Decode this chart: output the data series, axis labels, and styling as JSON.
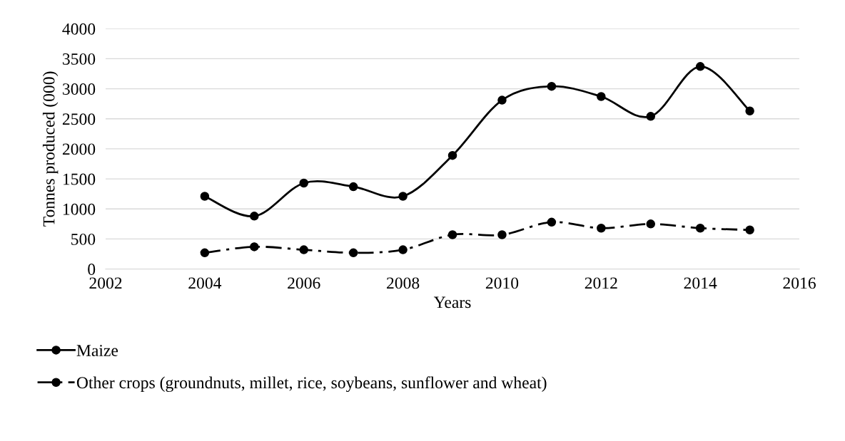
{
  "chart_data": {
    "type": "line",
    "xlabel": "Years",
    "ylabel": "Tonnes produced (000)",
    "x": [
      2004,
      2005,
      2006,
      2007,
      2008,
      2009,
      2010,
      2011,
      2012,
      2013,
      2014,
      2015
    ],
    "series": [
      {
        "name": "Maize",
        "color": "#000000",
        "line_style": "solid",
        "values": [
          1210,
          880,
          1430,
          1370,
          1210,
          1890,
          2810,
          3040,
          2870,
          2540,
          3370,
          2630
        ]
      },
      {
        "name": "Other crops (groundnuts, millet, rice, soybeans, sunflower and wheat)",
        "color": "#000000",
        "line_style": "dashdot",
        "values": [
          270,
          370,
          320,
          270,
          320,
          570,
          570,
          780,
          680,
          750,
          680,
          650
        ]
      }
    ],
    "xlim": [
      2002,
      2016
    ],
    "xticks": [
      2002,
      2004,
      2006,
      2008,
      2010,
      2012,
      2014,
      2016
    ],
    "ylim": [
      0,
      4000
    ],
    "yticks": [
      0,
      500,
      1000,
      1500,
      2000,
      2500,
      3000,
      3500,
      4000
    ],
    "grid": "y",
    "legend": "bottom",
    "marker": "circle"
  }
}
